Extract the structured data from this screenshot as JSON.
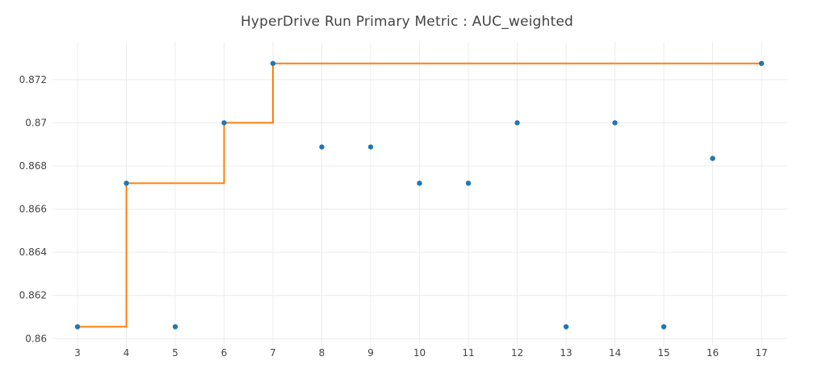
{
  "chart_data": {
    "type": "scatter",
    "title": "HyperDrive Run Primary Metric : AUC_weighted",
    "xlabel": "",
    "ylabel": "",
    "categories": [
      "3",
      "4",
      "5",
      "6",
      "7",
      "8",
      "9",
      "10",
      "11",
      "12",
      "13",
      "14",
      "15",
      "16",
      "17"
    ],
    "ylim": [
      0.8596,
      0.8733
    ],
    "yticks": [
      0.86,
      0.862,
      0.864,
      0.866,
      0.868,
      0.87,
      0.872
    ],
    "ytick_labels": [
      "0.86",
      "0.862",
      "0.864",
      "0.866",
      "0.868",
      "0.87",
      "0.872"
    ],
    "grid": true,
    "series": [
      {
        "type": "scatter",
        "color": "#1f77b4",
        "values": [
          0.86055,
          0.8672,
          0.86055,
          0.87,
          0.87275,
          0.86888,
          0.86888,
          0.8672,
          0.8672,
          0.87,
          0.86055,
          0.87,
          0.86055,
          0.86835,
          0.87275
        ]
      },
      {
        "type": "step",
        "color": "#ff7f0e",
        "values": [
          0.86055,
          0.8672,
          0.8672,
          0.87,
          0.87275,
          0.87275,
          0.87275,
          0.87275,
          0.87275,
          0.87275,
          0.87275,
          0.87275,
          0.87275,
          0.87275,
          0.87275
        ],
        "drawn_at": [
          "3",
          "4",
          "6",
          "7",
          "17"
        ]
      }
    ]
  }
}
